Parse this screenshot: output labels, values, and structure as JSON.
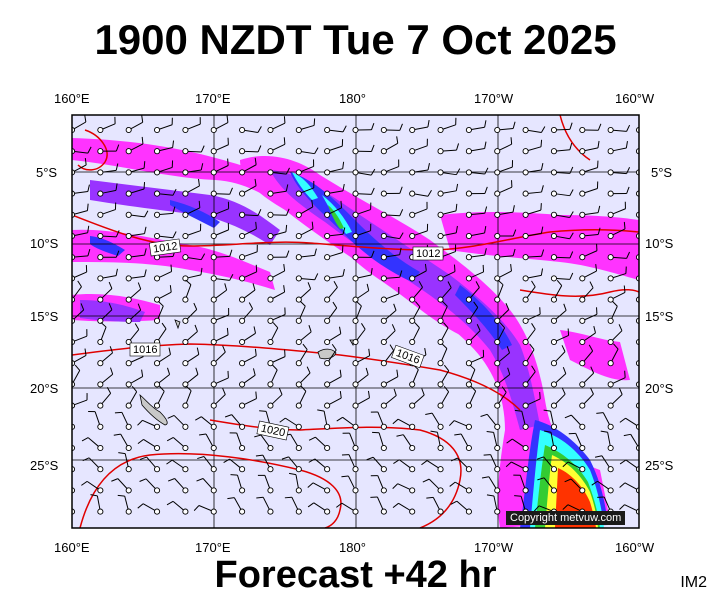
{
  "title": "1900 NZDT Tue 7 Oct 2025",
  "footer": "Forecast +42 hr",
  "image_code": "IM2",
  "copyright": "Copyright metvuw.com",
  "longitude_labels": [
    "160°E",
    "170°E",
    "180°",
    "170°W",
    "160°W"
  ],
  "latitude_labels": [
    "5°S",
    "10°S",
    "15°S",
    "20°S",
    "25°S"
  ],
  "isobar_labels": [
    "1012",
    "1012",
    "1016",
    "1016",
    "1020"
  ],
  "colors": {
    "background": "#e6e6ff",
    "isobar": "#e00000",
    "frame": "#000000",
    "precip_light": "#ff33ff",
    "precip_mid": "#9933ff",
    "precip_heavy": "#3333ff",
    "precip_cyan": "#33ffff",
    "precip_green": "#33cc33",
    "precip_yellow": "#ffff33",
    "precip_red": "#ff3300"
  },
  "map_extent": {
    "lon_west": "160°E",
    "lon_east": "160°W",
    "lat_north": "about 2°S",
    "lat_south": "about 29°S"
  }
}
